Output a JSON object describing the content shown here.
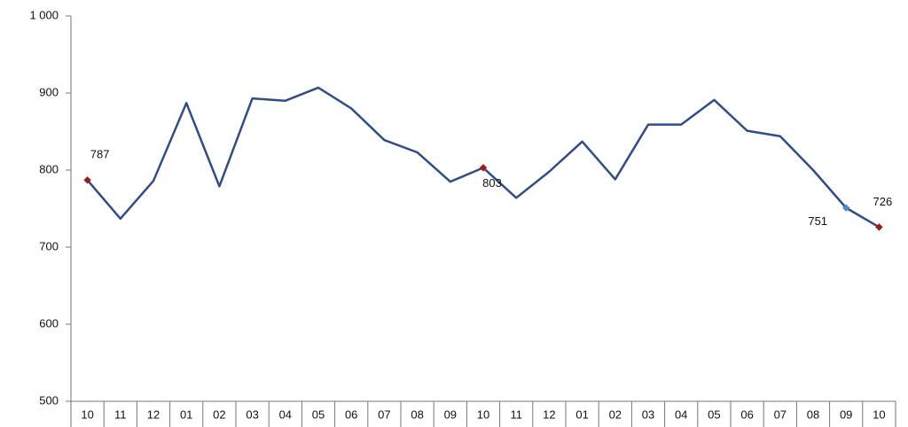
{
  "chart_data": {
    "type": "line",
    "categories": [
      "10",
      "11",
      "12",
      "01",
      "02",
      "03",
      "04",
      "05",
      "06",
      "07",
      "08",
      "09",
      "10",
      "11",
      "12",
      "01",
      "02",
      "03",
      "04",
      "05",
      "06",
      "07",
      "08",
      "09",
      "10"
    ],
    "series": [
      {
        "color": "#2f4d8a",
        "values": [
          787,
          737,
          786,
          887,
          779,
          893,
          890,
          907,
          880,
          839,
          823,
          785,
          803,
          764,
          798,
          837,
          788,
          859,
          859,
          891,
          851,
          844,
          800,
          751,
          726
        ],
        "value_labels": [
          "787",
          null,
          null,
          null,
          null,
          null,
          null,
          null,
          null,
          null,
          null,
          null,
          "803",
          null,
          null,
          null,
          null,
          null,
          null,
          null,
          null,
          null,
          null,
          "751",
          "726"
        ],
        "marker_colors": [
          "#a01c1c",
          null,
          null,
          null,
          null,
          null,
          null,
          null,
          null,
          null,
          null,
          null,
          "#a01c1c",
          null,
          null,
          null,
          null,
          null,
          null,
          null,
          null,
          null,
          null,
          "#4a90c8",
          "#a01c1c"
        ]
      }
    ],
    "ylim": [
      500,
      1000
    ],
    "yticks": [
      500,
      600,
      700,
      800,
      900,
      {
        "value": 1000,
        "label": "1 000"
      }
    ],
    "grid": false
  }
}
